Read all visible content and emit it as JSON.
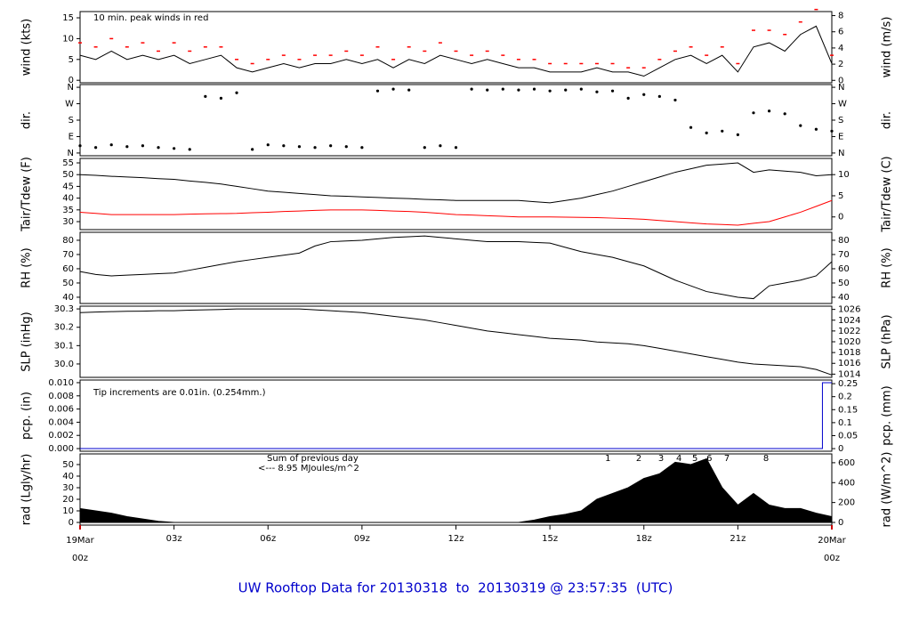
{
  "title": "UW Rooftop Data for 20130318  to  20130319 @ 23:57:35  (UTC)",
  "xlim": [
    0,
    24
  ],
  "xticks": [
    {
      "value": 0,
      "label": "00z",
      "date": "19Mar"
    },
    {
      "value": 3,
      "label": "03z"
    },
    {
      "value": 6,
      "label": "06z"
    },
    {
      "value": 9,
      "label": "09z"
    },
    {
      "value": 12,
      "label": "12z"
    },
    {
      "value": 15,
      "label": "15z"
    },
    {
      "value": 18,
      "label": "18z"
    },
    {
      "value": 21,
      "label": "21z"
    },
    {
      "value": 24,
      "label": "00z",
      "date": "20Mar"
    }
  ],
  "x": [
    0,
    0.5,
    1,
    1.5,
    2,
    2.5,
    3,
    3.5,
    4,
    4.5,
    5,
    5.5,
    6,
    6.5,
    7,
    7.5,
    8,
    8.5,
    9,
    9.5,
    10,
    10.5,
    11,
    11.5,
    12,
    12.5,
    13,
    13.5,
    14,
    14.5,
    15,
    15.5,
    16,
    16.5,
    17,
    17.5,
    18,
    18.5,
    19,
    19.5,
    20,
    20.5,
    21,
    21.5,
    22,
    22.5,
    23,
    23.5,
    24
  ],
  "chart_data": [
    {
      "type": "line",
      "ylabel": "wind (kts)",
      "y2label": "wind (m/s)",
      "ylim": [
        -0.6,
        16.5
      ],
      "yticks": [
        0,
        5,
        10,
        15
      ],
      "y2lim": [
        -0.3,
        8.5
      ],
      "y2ticks": [
        0,
        2,
        4,
        6,
        8
      ],
      "annotations": [
        {
          "text": "10 min. peak winds in red",
          "color": "#ff0000"
        }
      ],
      "series": [
        {
          "color": "#000000",
          "values": [
            6,
            5,
            7,
            5,
            6,
            5,
            6,
            4,
            5,
            6,
            3,
            2,
            3,
            4,
            3,
            4,
            4,
            5,
            4,
            5,
            3,
            5,
            4,
            6,
            5,
            4,
            5,
            4,
            3,
            3,
            2,
            2,
            2,
            3,
            2,
            2,
            1,
            3,
            5,
            6,
            4,
            6,
            2,
            8,
            9,
            7,
            11,
            13,
            4
          ]
        },
        {
          "color": "#ff0000",
          "marker": "dash",
          "values": [
            9,
            8,
            10,
            8,
            9,
            7,
            9,
            7,
            8,
            8,
            5,
            4,
            5,
            6,
            5,
            6,
            6,
            7,
            6,
            8,
            5,
            8,
            7,
            9,
            7,
            6,
            7,
            6,
            5,
            5,
            4,
            4,
            4,
            4,
            4,
            3,
            3,
            5,
            7,
            8,
            6,
            8,
            4,
            12,
            12,
            11,
            14,
            17,
            6
          ]
        }
      ]
    },
    {
      "type": "scatter",
      "ylabel": "dir.",
      "y2label": "dir.",
      "ylim": [
        -15,
        375
      ],
      "yticks": [
        {
          "value": 0,
          "label": "N"
        },
        {
          "value": 90,
          "label": "E"
        },
        {
          "value": 180,
          "label": "S"
        },
        {
          "value": 270,
          "label": "W"
        },
        {
          "value": 360,
          "label": "N"
        }
      ],
      "y2lim": [
        -15,
        375
      ],
      "y2ticks": [
        {
          "value": 0,
          "label": "N"
        },
        {
          "value": 90,
          "label": "E"
        },
        {
          "value": 180,
          "label": "S"
        },
        {
          "value": 270,
          "label": "W"
        },
        {
          "value": 360,
          "label": "N"
        }
      ],
      "series": [
        {
          "color": "#000000",
          "values": [
            40,
            30,
            45,
            35,
            40,
            30,
            25,
            20,
            310,
            300,
            330,
            20,
            45,
            40,
            35,
            30,
            40,
            35,
            30,
            340,
            350,
            345,
            30,
            40,
            30,
            350,
            345,
            350,
            345,
            350,
            340,
            345,
            350,
            335,
            340,
            300,
            320,
            310,
            290,
            140,
            110,
            120,
            100,
            220,
            230,
            215,
            150,
            130,
            120
          ]
        }
      ]
    },
    {
      "type": "line",
      "ylabel": "Tair/Tdew (F)",
      "y2label": "Tair/Tdew (C)",
      "ylim": [
        26.6,
        56.9
      ],
      "yticks": [
        30,
        35,
        40,
        45,
        50,
        55
      ],
      "y2lim": [
        -3,
        13.83
      ],
      "y2ticks": [
        0,
        5,
        10
      ],
      "series": [
        {
          "color": "#000000",
          "values": [
            50,
            49.7,
            49.3,
            49,
            48.7,
            48.3,
            48,
            47.3,
            46.7,
            46,
            45,
            44,
            43,
            42.5,
            42,
            41.5,
            41,
            40.8,
            40.5,
            40.3,
            40,
            39.8,
            39.5,
            39.3,
            39,
            39,
            39,
            39,
            39,
            38.5,
            38,
            39,
            40,
            41.5,
            43,
            45,
            47,
            49,
            51,
            52.5,
            54,
            54.5,
            55,
            51,
            52,
            51.5,
            51,
            49.5,
            50
          ]
        },
        {
          "color": "#ff0000",
          "values": [
            34,
            33.5,
            33,
            33,
            33,
            33,
            33,
            33.2,
            33.3,
            33.4,
            33.5,
            33.8,
            34,
            34.3,
            34.5,
            34.8,
            35,
            35,
            35,
            34.8,
            34.5,
            34.3,
            34,
            33.5,
            33,
            32.8,
            32.5,
            32.3,
            32,
            32,
            32,
            31.9,
            31.8,
            31.7,
            31.5,
            31.3,
            31,
            30.5,
            30,
            29.5,
            29,
            28.8,
            28.5,
            29.3,
            30,
            32,
            34,
            36.5,
            39
          ]
        }
      ]
    },
    {
      "type": "line",
      "ylabel": "RH (%)",
      "y2label": "RH (%)",
      "ylim": [
        35.6,
        85.6
      ],
      "yticks": [
        40,
        50,
        60,
        70,
        80
      ],
      "y2lim": [
        35.6,
        85.6
      ],
      "y2ticks": [
        40,
        50,
        60,
        70,
        80
      ],
      "series": [
        {
          "color": "#000000",
          "values": [
            58,
            56,
            55,
            55.5,
            56,
            56.5,
            57,
            59,
            61,
            63,
            65,
            66.5,
            68,
            69.5,
            71,
            76,
            79,
            79.5,
            80,
            81,
            82,
            82.5,
            83,
            82,
            81,
            80,
            79,
            79,
            79,
            78.5,
            78,
            75,
            72,
            70,
            68,
            65,
            62,
            57,
            52,
            48,
            44,
            42,
            40,
            39,
            48,
            50,
            52,
            55,
            65
          ]
        }
      ]
    },
    {
      "type": "line",
      "ylabel": "SLP (inHg)",
      "y2label": "SLP (hPa)",
      "ylim": [
        29.927,
        30.315
      ],
      "yticks": [
        {
          "value": 30,
          "label": "30.0"
        },
        30.1,
        30.2,
        30.3
      ],
      "y2lim": [
        1013.4,
        1026.6
      ],
      "y2ticks": [
        1014,
        1016,
        1018,
        1020,
        1022,
        1024,
        1026
      ],
      "series": [
        {
          "color": "#000000",
          "values": [
            30.28,
            30.283,
            30.285,
            30.287,
            30.288,
            30.29,
            30.29,
            30.293,
            30.295,
            30.297,
            30.3,
            30.3,
            30.3,
            30.3,
            30.3,
            30.295,
            30.29,
            30.285,
            30.28,
            30.27,
            30.26,
            30.25,
            30.24,
            30.225,
            30.21,
            30.195,
            30.18,
            30.17,
            30.16,
            30.15,
            30.14,
            30.135,
            30.13,
            30.12,
            30.115,
            30.11,
            30.1,
            30.085,
            30.07,
            30.055,
            30.04,
            30.025,
            30.01,
            30,
            29.995,
            29.99,
            29.985,
            29.97,
            29.94
          ]
        }
      ]
    },
    {
      "type": "line",
      "ylabel": "pcp. (in)",
      "y2label": "pcp. (mm)",
      "ylim": [
        -0.0004,
        0.0104
      ],
      "yticks": [
        {
          "value": 0,
          "label": "0.000"
        },
        {
          "value": 0.002,
          "label": "0.002"
        },
        {
          "value": 0.004,
          "label": "0.004"
        },
        {
          "value": 0.006,
          "label": "0.006"
        },
        {
          "value": 0.008,
          "label": "0.008"
        },
        {
          "value": 0.01,
          "label": "0.010"
        }
      ],
      "y2lim": [
        -0.01,
        0.264
      ],
      "y2ticks": [
        0,
        0.05,
        0.1,
        0.15,
        0.2,
        0.25
      ],
      "annotations": [
        {
          "text": "Tip increments are 0.01in. (0.254mm.)",
          "color": "#0000cc"
        }
      ],
      "series": [
        {
          "color": "#0000cc",
          "x": [
            0,
            23.7,
            23.7,
            24
          ],
          "values": [
            0,
            0,
            0.01,
            0.01
          ]
        }
      ]
    },
    {
      "type": "area",
      "ylabel": "rad (Lgly/hr)",
      "y2label": "rad (W/m^2)",
      "ylim": [
        -2.3,
        59.2
      ],
      "yticks": [
        0,
        10,
        20,
        30,
        40,
        50
      ],
      "y2lim": [
        -26.8,
        688.5
      ],
      "y2ticks": [
        0,
        200,
        400,
        600
      ],
      "annotations": [
        {
          "text": "Sum of previous day",
          "color": "#9900cc"
        },
        {
          "text": "<--- 8.95 MJoules/m^2",
          "color": "#9900cc"
        }
      ],
      "markers": [
        {
          "x": 16.85,
          "label": "1"
        },
        {
          "x": 17.84,
          "label": "2"
        },
        {
          "x": 18.55,
          "label": "3"
        },
        {
          "x": 19.12,
          "label": "4"
        },
        {
          "x": 19.63,
          "label": "5"
        },
        {
          "x": 20.09,
          "label": "6"
        },
        {
          "x": 20.65,
          "label": "7"
        },
        {
          "x": 21.9,
          "label": "8"
        }
      ],
      "marker_color": "#9900cc",
      "series": [
        {
          "color": "#000000",
          "values": [
            12,
            10,
            8,
            5,
            3,
            1,
            0,
            0,
            0,
            0,
            0,
            0,
            0,
            0,
            0,
            0,
            0,
            0,
            0,
            0,
            0,
            0,
            0,
            0,
            0,
            0,
            0,
            0,
            0,
            2,
            5,
            7,
            10,
            20,
            25,
            30,
            38,
            42,
            52,
            50,
            55,
            30,
            15,
            25,
            15,
            12,
            12,
            8,
            5
          ]
        }
      ]
    }
  ]
}
